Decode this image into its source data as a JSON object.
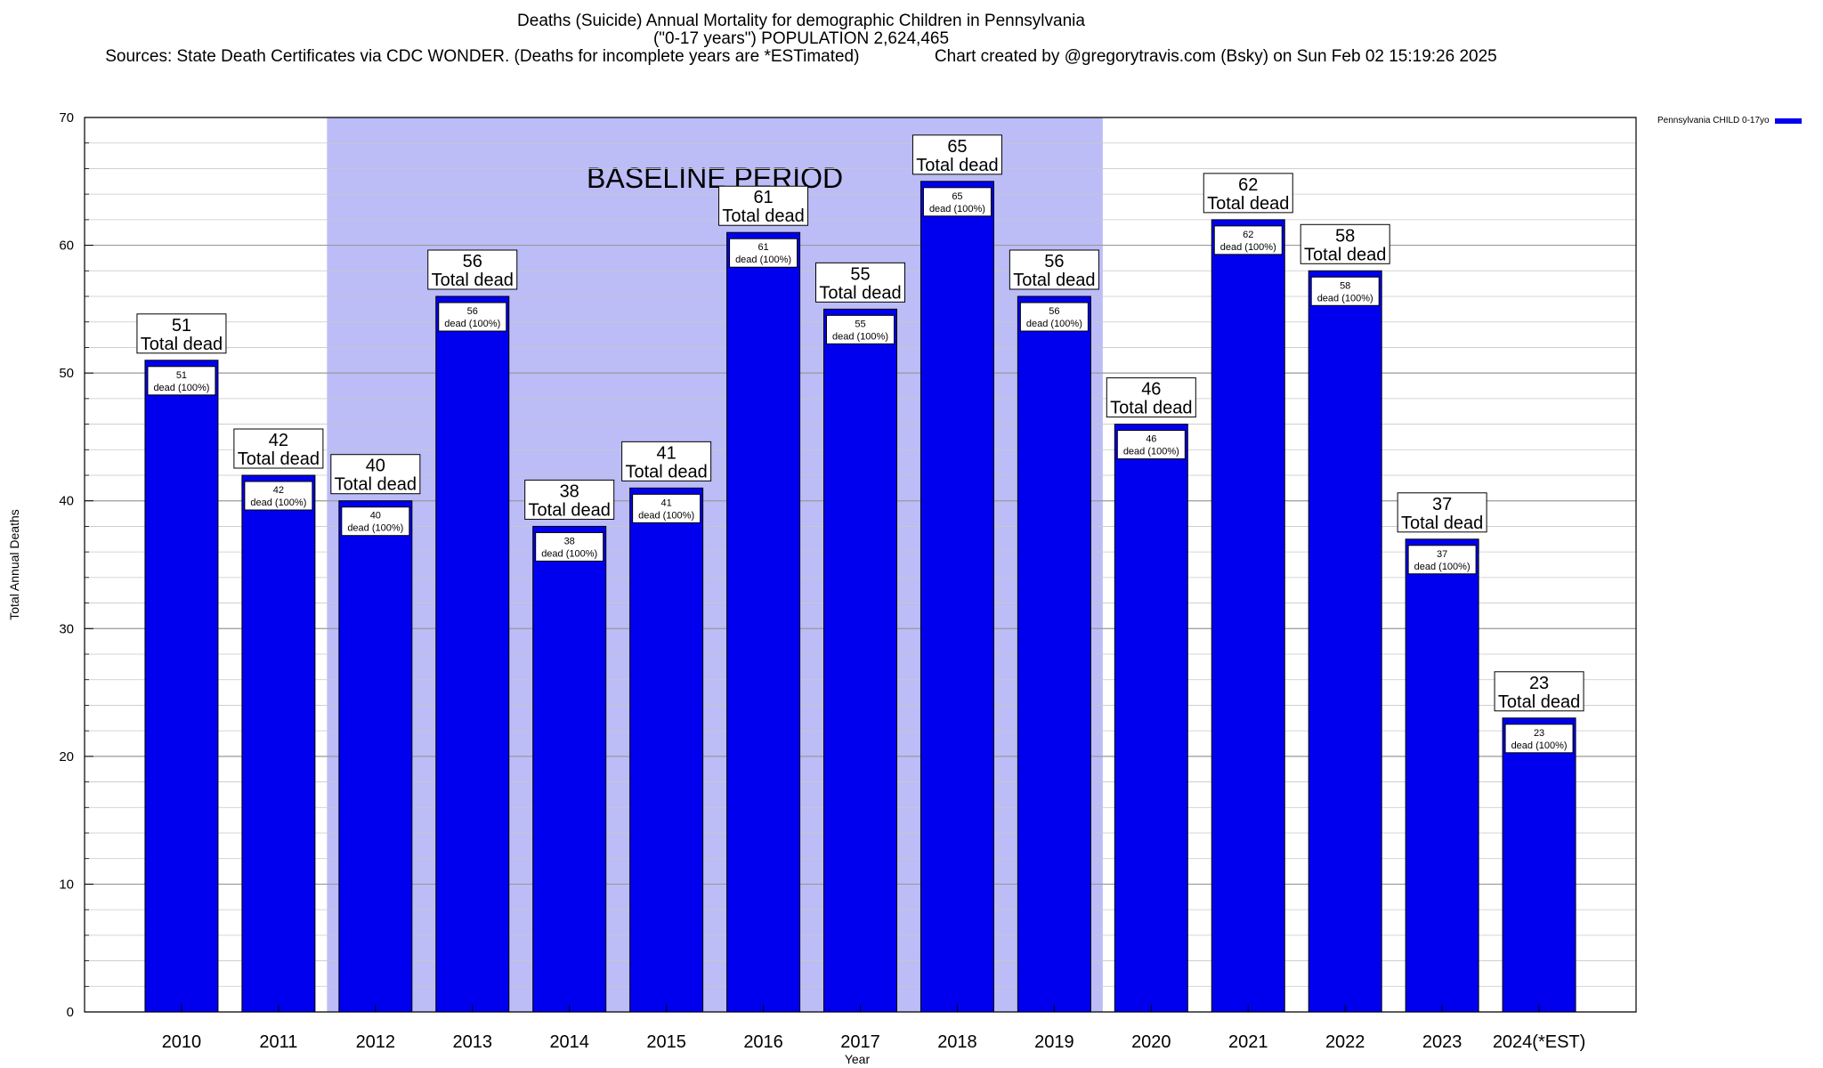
{
  "chart_data": {
    "type": "bar",
    "title_lines": [
      "Deaths (Suicide) Annual Mortality for demographic Children in Pennsylvania",
      "(\"0-17 years\") POPULATION 2,624,465",
      "Sources: State Death Certificates via CDC WONDER. (Deaths for incomplete years are *ESTimated)                Chart created by @gregorytravis.com (Bsky) on Sun Feb 02 15:19:26 2025"
    ],
    "xlabel": "Year",
    "ylabel": "Total Annual Deaths",
    "ylim": [
      0,
      70
    ],
    "yticks": [
      0,
      10,
      20,
      30,
      40,
      50,
      60,
      70
    ],
    "categories": [
      "2010",
      "2011",
      "2012",
      "2013",
      "2014",
      "2015",
      "2016",
      "2017",
      "2018",
      "2019",
      "2020",
      "2021",
      "2022",
      "2023",
      "2024(*EST)"
    ],
    "series": [
      {
        "name": "Pennsylvania CHILD 0-17yo",
        "color": "#0000ee",
        "values": [
          51,
          42,
          40,
          56,
          38,
          41,
          61,
          55,
          65,
          56,
          46,
          62,
          58,
          37,
          23
        ]
      }
    ],
    "top_label_suffix": "Total dead",
    "inner_label_suffix": "dead (100%)",
    "baseline_period": {
      "label": "BASELINE PERIOD",
      "from": "2012",
      "to": "2019",
      "color": "#bcbcf7"
    },
    "grid": true,
    "legend_position": "top-right"
  }
}
